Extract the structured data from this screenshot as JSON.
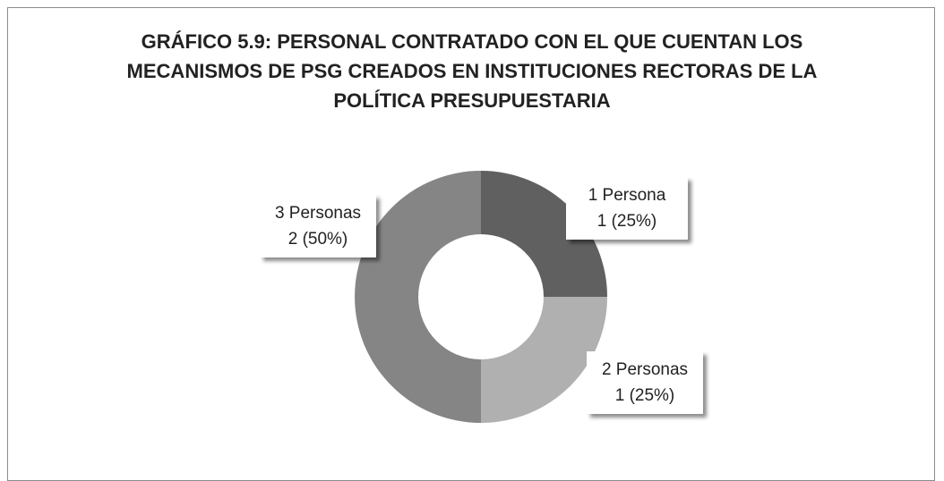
{
  "chart_data": {
    "type": "donut",
    "title": "GRÁFICO 5.9:  PERSONAL CONTRATADO CON EL QUE CUENTAN LOS MECANISMOS DE PSG CREADOS EN INSTITUCIONES RECTORAS DE LA POLÍTICA PRESUPUESTARIA",
    "categories": [
      "1 Persona",
      "2 Personas",
      "3 Personas"
    ],
    "values": [
      1,
      1,
      2
    ],
    "value_labels": [
      "1 (25%)",
      "1 (25%)",
      "2 (50%)"
    ],
    "colors": [
      "#606060",
      "#b0b0b0",
      "#858585"
    ]
  }
}
